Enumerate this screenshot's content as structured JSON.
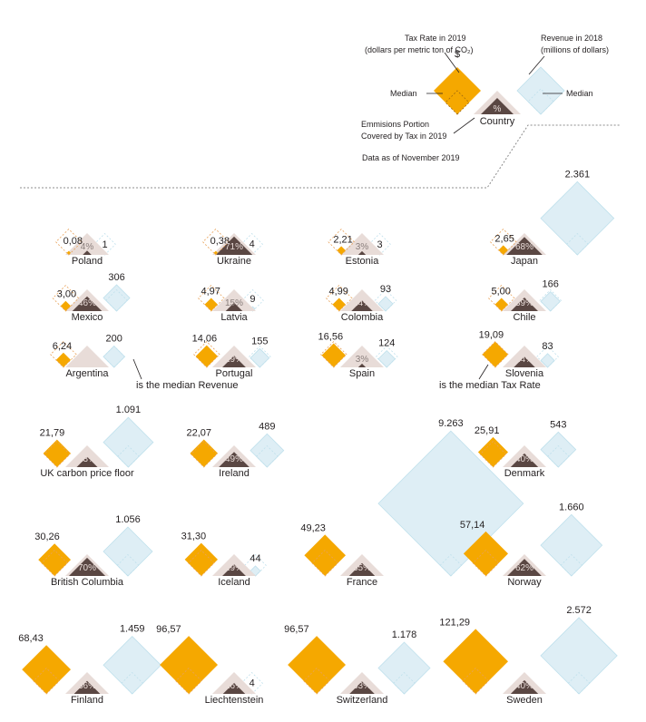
{
  "colors": {
    "tax": "#f5a800",
    "tax_median_outline": "#e8a25a",
    "revenue": "#deeef5",
    "revenue_outline": "#bfe0ec",
    "coverage_bg": "#e8dcd8",
    "coverage": "#5a4743",
    "rule": "#8c8c8c"
  },
  "legend": {
    "tax_label_1": "Tax Rate in 2019",
    "tax_label_2": "(dollars per metric ton of CO₂)",
    "tax_symbol": "$",
    "rev_label_1": "Revenue in 2018",
    "rev_label_2": "(millions of dollars)",
    "median_left": "Median",
    "median_right": "Median",
    "pct_symbol": "%",
    "country": "Country",
    "cov_label_1": "Emmisions Portion",
    "cov_label_2": "Covered by Tax in 2019",
    "date_note": "Data as of November 2019"
  },
  "annotations": {
    "median_revenue": "is the median Revenue",
    "median_tax": "is the median Tax Rate"
  },
  "chart_data": {
    "type": "proportional diamond glyphs",
    "median_tax_rate": 19.09,
    "median_revenue": 200,
    "countries": [
      {
        "name": "Poland",
        "tax": "0,08",
        "tax_value": 0.08,
        "coverage": "4%",
        "coverage_value": 4,
        "revenue": "1",
        "revenue_value": 1
      },
      {
        "name": "Ukraine",
        "tax": "0,38",
        "tax_value": 0.38,
        "coverage": "71%",
        "coverage_value": 71,
        "revenue": "4",
        "revenue_value": 4
      },
      {
        "name": "Estonia",
        "tax": "2,21",
        "tax_value": 2.21,
        "coverage": "3%",
        "coverage_value": 3,
        "revenue": "3",
        "revenue_value": 3
      },
      {
        "name": "Japan",
        "tax": "2,65",
        "tax_value": 2.65,
        "coverage": "68%",
        "coverage_value": 68,
        "revenue": "2.361",
        "revenue_value": 2361
      },
      {
        "name": "Mexico",
        "tax": "3,00",
        "tax_value": 3.0,
        "coverage": "46%",
        "coverage_value": 46,
        "revenue": "306",
        "revenue_value": 306
      },
      {
        "name": "Latvia",
        "tax": "4,97",
        "tax_value": 4.97,
        "coverage": "15%",
        "coverage_value": 15,
        "revenue": "9",
        "revenue_value": 9
      },
      {
        "name": "Colombia",
        "tax": "4,99",
        "tax_value": 4.99,
        "coverage": "24%",
        "coverage_value": 24,
        "revenue": "93",
        "revenue_value": 93
      },
      {
        "name": "Chile",
        "tax": "5,00",
        "tax_value": 5.0,
        "coverage": "39%",
        "coverage_value": 39,
        "revenue": "166",
        "revenue_value": 166
      },
      {
        "name": "Argentina",
        "tax": "6,24",
        "tax_value": 6.24,
        "coverage": "",
        "coverage_value": null,
        "revenue": "200",
        "revenue_value": 200
      },
      {
        "name": "Portugal",
        "tax": "14,06",
        "tax_value": 14.06,
        "coverage": "29%",
        "coverage_value": 29,
        "revenue": "155",
        "revenue_value": 155
      },
      {
        "name": "Spain",
        "tax": "16,56",
        "tax_value": 16.56,
        "coverage": "3%",
        "coverage_value": 3,
        "revenue": "124",
        "revenue_value": 124
      },
      {
        "name": "Slovenia",
        "tax": "19,09",
        "tax_value": 19.09,
        "coverage": "24%",
        "coverage_value": 24,
        "revenue": "83",
        "revenue_value": 83
      },
      {
        "name": "UK carbon price floor",
        "tax": "21,79",
        "tax_value": 21.79,
        "coverage": "23%",
        "coverage_value": 23,
        "revenue": "1.091",
        "revenue_value": 1091
      },
      {
        "name": "Ireland",
        "tax": "22,07",
        "tax_value": 22.07,
        "coverage": "49%",
        "coverage_value": 49,
        "revenue": "489",
        "revenue_value": 489
      },
      {
        "name": "France",
        "tax": "49,23",
        "tax_value": 49.23,
        "coverage": "35%",
        "coverage_value": 35,
        "revenue": "9.263",
        "revenue_value": 9263
      },
      {
        "name": "Denmark",
        "tax": "25,91",
        "tax_value": 25.91,
        "coverage": "40%",
        "coverage_value": 40,
        "revenue": "543",
        "revenue_value": 543
      },
      {
        "name": "British Columbia",
        "tax": "30,26",
        "tax_value": 30.26,
        "coverage": "70%",
        "coverage_value": 70,
        "revenue": "1.056",
        "revenue_value": 1056
      },
      {
        "name": "Iceland",
        "tax": "31,30",
        "tax_value": 31.3,
        "coverage": "29%",
        "coverage_value": 29,
        "revenue": "44",
        "revenue_value": 44
      },
      {
        "name": "Norway",
        "tax": "57,14",
        "tax_value": 57.14,
        "coverage": "62%",
        "coverage_value": 62,
        "revenue": "1.660",
        "revenue_value": 1660
      },
      {
        "name": "Finland",
        "tax": "68,43",
        "tax_value": 68.43,
        "coverage": "36%",
        "coverage_value": 36,
        "revenue": "1.459",
        "revenue_value": 1459
      },
      {
        "name": "Liechtenstein",
        "tax": "96,57",
        "tax_value": 96.57,
        "coverage": "26%",
        "coverage_value": 26,
        "revenue": "4",
        "revenue_value": 4
      },
      {
        "name": "Switzerland",
        "tax": "96,57",
        "tax_value": 96.57,
        "coverage": "33%",
        "coverage_value": 33,
        "revenue": "1.178",
        "revenue_value": 1178
      },
      {
        "name": "Sweden",
        "tax": "121,29",
        "tax_value": 121.29,
        "coverage": "40%",
        "coverage_value": 40,
        "revenue": "2.572",
        "revenue_value": 2572
      }
    ]
  }
}
